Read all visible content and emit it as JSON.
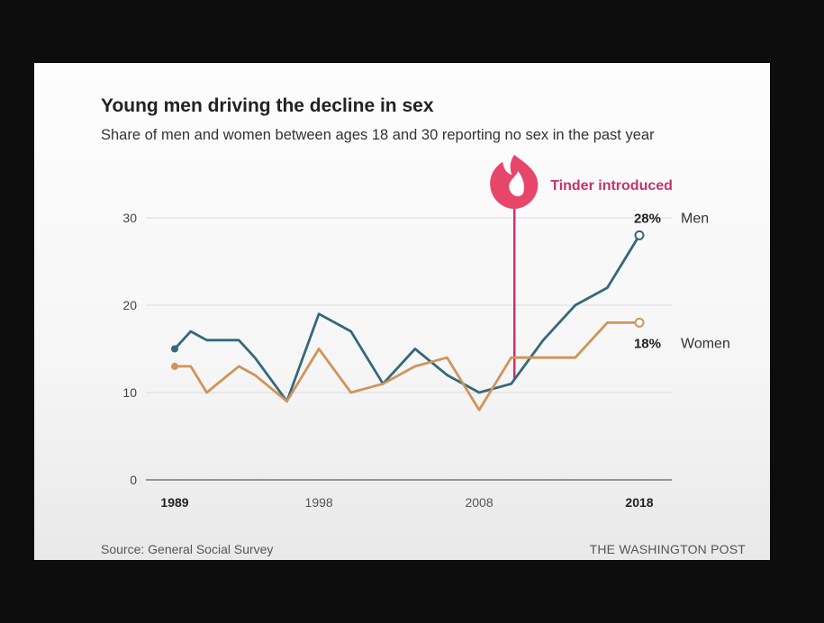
{
  "title": "Young men driving the decline in sex",
  "subtitle": "Share of men and women between ages 18 and 30 reporting no sex in the past year",
  "source": "Source: General Social Survey",
  "publisher": "THE WASHINGTON POST",
  "chart_data": {
    "type": "line",
    "title": "Young men driving the decline in sex",
    "subtitle": "Share of men and women between ages 18 and 30 reporting no sex in the past year",
    "xlabel": "",
    "ylabel": "",
    "xlim": [
      1989,
      2018
    ],
    "ylim": [
      0,
      30
    ],
    "x_ticks": [
      {
        "value": 1989,
        "label": "1989",
        "bold": true
      },
      {
        "value": 1998,
        "label": "1998",
        "bold": false
      },
      {
        "value": 2008,
        "label": "2008",
        "bold": false
      },
      {
        "value": 2018,
        "label": "2018",
        "bold": true
      }
    ],
    "y_ticks": [
      0,
      10,
      20,
      30
    ],
    "grid": true,
    "legend": "direct labels at line ends (right)",
    "series": [
      {
        "name": "Men",
        "color": "#35687a",
        "end_label": "28%",
        "x": [
          1989,
          1990,
          1991,
          1993,
          1994,
          1996,
          1998,
          2000,
          2002,
          2004,
          2006,
          2008,
          2010,
          2012,
          2014,
          2016,
          2018
        ],
        "values": [
          15,
          17,
          16,
          16,
          14,
          9,
          19,
          17,
          11,
          15,
          12,
          10,
          11,
          16,
          20,
          22,
          28
        ]
      },
      {
        "name": "Women",
        "color": "#d1935a",
        "end_label": "18%",
        "x": [
          1989,
          1990,
          1991,
          1993,
          1994,
          1996,
          1998,
          2000,
          2002,
          2004,
          2006,
          2008,
          2010,
          2012,
          2014,
          2016,
          2018
        ],
        "values": [
          13,
          13,
          10,
          13,
          12,
          9,
          15,
          10,
          11,
          13,
          14,
          8,
          14,
          14,
          14,
          18,
          18
        ]
      }
    ],
    "annotations": [
      {
        "type": "event-line",
        "x": 2010.2,
        "label": "Tinder introduced",
        "icon": "tinder-flame-icon",
        "color": "#c8326e"
      }
    ]
  }
}
